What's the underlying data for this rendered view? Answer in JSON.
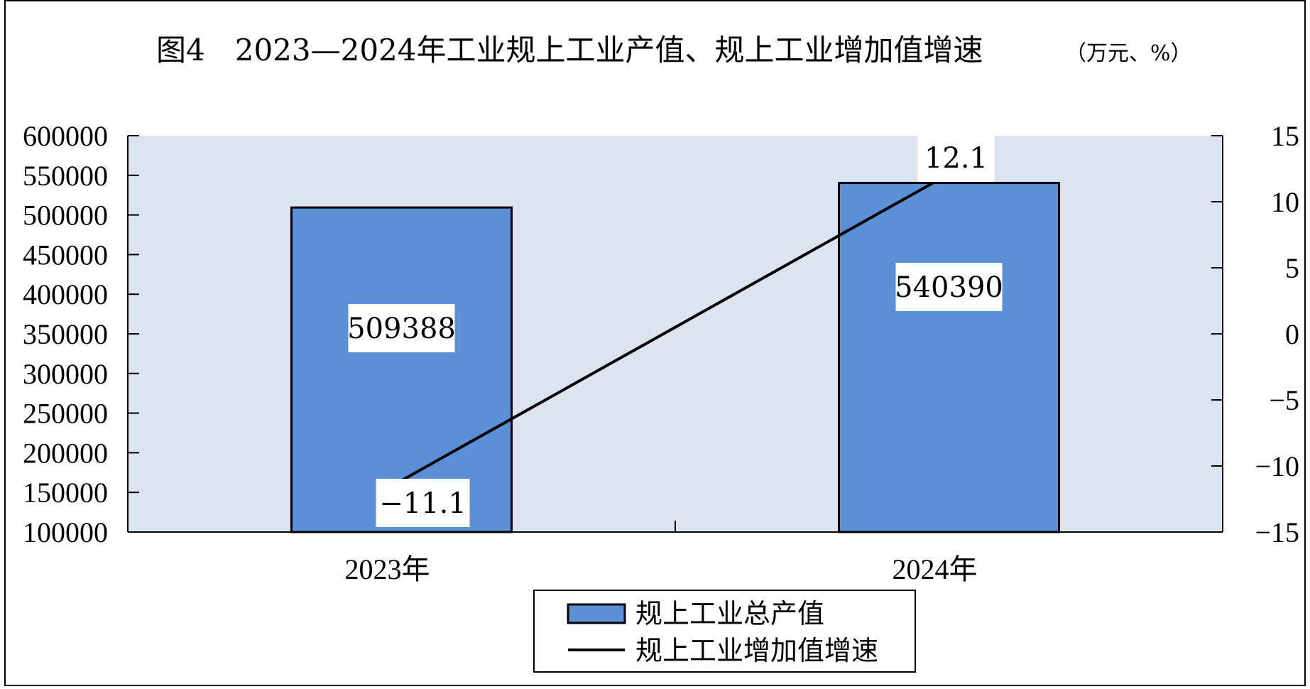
{
  "chart_data": {
    "type": "bar",
    "title": "图4　2023—2024年工业规上工业产值、规上工业增加值增速",
    "units": "（万元、%）",
    "categories": [
      "2023年",
      "2024年"
    ],
    "series": [
      {
        "name": "规上工业总产值",
        "type": "bar",
        "axis": "left",
        "values": [
          509388,
          540390
        ],
        "color": "#5b8fd6"
      },
      {
        "name": "规上工业增加值增速",
        "type": "line",
        "axis": "right",
        "values": [
          -11.1,
          12.1
        ],
        "color": "#000000"
      }
    ],
    "data_labels": {
      "bar": [
        "509388",
        "540390"
      ],
      "line": [
        "-11.1",
        "12.1"
      ]
    },
    "y_left": {
      "min": 100000,
      "max": 600000,
      "step": 50000
    },
    "y_right": {
      "min": -15,
      "max": 15,
      "step": 5
    },
    "plot_background": "#dce4f0",
    "grid": false,
    "legend_position": "bottom"
  }
}
